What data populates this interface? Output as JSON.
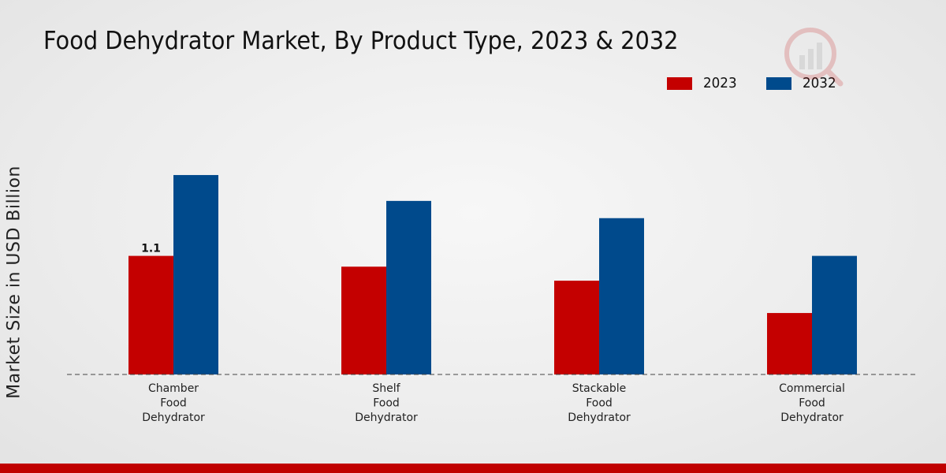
{
  "chart_data": {
    "type": "bar",
    "title": "Food Dehydrator Market, By Product Type, 2023 & 2032",
    "ylabel": "Market Size in USD Billion",
    "xlabel": "",
    "categories": [
      "Chamber\nFood\nDehydrator",
      "Shelf\nFood\nDehydrator",
      "Stackable\nFood\nDehydrator",
      "Commercial\nFood\nDehydrator"
    ],
    "series": [
      {
        "name": "2023",
        "values": [
          1.1,
          1.0,
          0.87,
          0.57
        ],
        "color": "#c40000"
      },
      {
        "name": "2032",
        "values": [
          1.85,
          1.61,
          1.45,
          1.1
        ],
        "color": "#004a8c"
      }
    ],
    "data_labels": [
      {
        "series": "2023",
        "category_index": 0,
        "text": "1.1"
      }
    ],
    "ylim": [
      0,
      2.45
    ],
    "grid": false,
    "legend_position": "top-right"
  },
  "colors": {
    "accent_bar": "#c00000"
  }
}
